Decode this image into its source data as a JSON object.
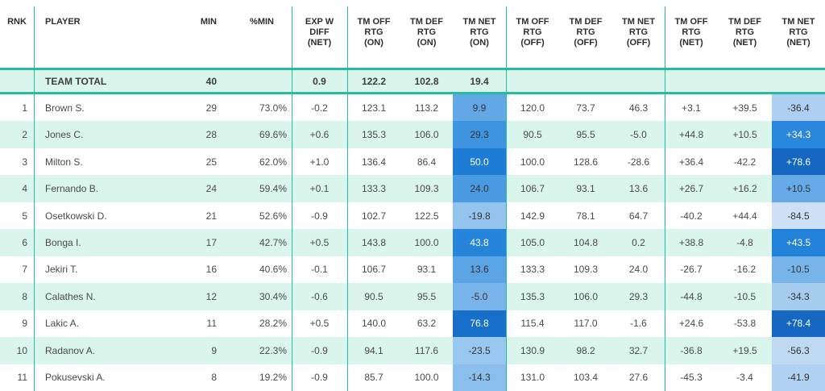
{
  "colors": {
    "teal_accent": "#26bca2",
    "stripe_bg": "#d9f5ec",
    "header_text": "#2e2e2e",
    "body_text": "#4a4a4a",
    "heat_dark_text": "#ffffff",
    "heat_light_text": "#333333"
  },
  "table": {
    "columns": [
      {
        "id": "rnk",
        "label": "RNK"
      },
      {
        "id": "player",
        "label": "PLAYER"
      },
      {
        "id": "min",
        "label": "MIN"
      },
      {
        "id": "pct_min",
        "label": "%MIN"
      },
      {
        "id": "exp_w_diff",
        "label": "EXP W\nDIFF\n(NET)"
      },
      {
        "id": "off_on",
        "label": "TM OFF\nRTG\n(ON)"
      },
      {
        "id": "def_on",
        "label": "TM DEF\nRTG\n(ON)"
      },
      {
        "id": "net_on",
        "label": "TM NET\nRTG\n(ON)"
      },
      {
        "id": "off_off",
        "label": "TM OFF\nRTG\n(OFF)"
      },
      {
        "id": "def_off",
        "label": "TM DEF\nRTG\n(OFF)"
      },
      {
        "id": "net_off",
        "label": "TM NET\nRTG\n(OFF)"
      },
      {
        "id": "off_net",
        "label": "TM OFF\nRTG\n(NET)"
      },
      {
        "id": "def_net",
        "label": "TM DEF\nRTG\n(NET)"
      },
      {
        "id": "net_net",
        "label": "TM NET\nRTG\n(NET)"
      }
    ],
    "total_row": {
      "rnk": "",
      "player": "TEAM TOTAL",
      "min": "40",
      "pct_min": "",
      "exp_w_diff": "0.9",
      "off_on": "122.2",
      "def_on": "102.8",
      "net_on": "19.4",
      "off_off": "",
      "def_off": "",
      "net_off": "",
      "off_net": "",
      "def_net": "",
      "net_net": ""
    },
    "rows": [
      {
        "rnk": "1",
        "player": "Brown S.",
        "min": "29",
        "pct_min": "73.0%",
        "exp_w_diff": "-0.2",
        "off_on": "123.1",
        "def_on": "113.2",
        "net_on": {
          "value": "9.9",
          "bg": "#62a8e6",
          "text": "#333333"
        },
        "off_off": "120.0",
        "def_off": "73.7",
        "net_off": "46.3",
        "off_net": "+3.1",
        "def_net": "+39.5",
        "net_net": {
          "value": "-36.4",
          "bg": "#aecff1",
          "text": "#333333"
        }
      },
      {
        "rnk": "2",
        "player": "Jones C.",
        "min": "28",
        "pct_min": "69.6%",
        "exp_w_diff": "+0.6",
        "off_on": "135.3",
        "def_on": "106.0",
        "net_on": {
          "value": "29.3",
          "bg": "#3f94e0",
          "text": "#333333"
        },
        "off_off": "90.5",
        "def_off": "95.5",
        "net_off": "-5.0",
        "off_net": "+44.8",
        "def_net": "+10.5",
        "net_net": {
          "value": "+34.3",
          "bg": "#2b87db",
          "text": "#ffffff"
        }
      },
      {
        "rnk": "3",
        "player": "Milton S.",
        "min": "25",
        "pct_min": "62.0%",
        "exp_w_diff": "+1.0",
        "off_on": "136.4",
        "def_on": "86.4",
        "net_on": {
          "value": "50.0",
          "bg": "#1e7cd4",
          "text": "#ffffff"
        },
        "off_off": "100.0",
        "def_off": "128.6",
        "net_off": "-28.6",
        "off_net": "+36.4",
        "def_net": "-42.2",
        "net_net": {
          "value": "+78.6",
          "bg": "#1567c1",
          "text": "#ffffff"
        }
      },
      {
        "rnk": "4",
        "player": "Fernando B.",
        "min": "24",
        "pct_min": "59.4%",
        "exp_w_diff": "+0.1",
        "off_on": "133.3",
        "def_on": "109.3",
        "net_on": {
          "value": "24.0",
          "bg": "#4a9ae2",
          "text": "#333333"
        },
        "off_off": "106.7",
        "def_off": "93.1",
        "net_off": "13.6",
        "off_net": "+26.7",
        "def_net": "+16.2",
        "net_net": {
          "value": "+10.5",
          "bg": "#66aae7",
          "text": "#333333"
        }
      },
      {
        "rnk": "5",
        "player": "Osetkowski D.",
        "min": "21",
        "pct_min": "52.6%",
        "exp_w_diff": "-0.9",
        "off_on": "102.7",
        "def_on": "122.5",
        "net_on": {
          "value": "-19.8",
          "bg": "#93c4ee",
          "text": "#333333"
        },
        "off_off": "142.9",
        "def_off": "78.1",
        "net_off": "64.7",
        "off_net": "-40.2",
        "def_net": "+44.4",
        "net_net": {
          "value": "-84.5",
          "bg": "#cde0f5",
          "text": "#333333"
        }
      },
      {
        "rnk": "6",
        "player": "Bonga I.",
        "min": "17",
        "pct_min": "42.7%",
        "exp_w_diff": "+0.5",
        "off_on": "143.8",
        "def_on": "100.0",
        "net_on": {
          "value": "43.8",
          "bg": "#2685da",
          "text": "#ffffff"
        },
        "off_off": "105.0",
        "def_off": "104.8",
        "net_off": "0.2",
        "off_net": "+38.8",
        "def_net": "-4.8",
        "net_net": {
          "value": "+43.5",
          "bg": "#2281d9",
          "text": "#ffffff"
        }
      },
      {
        "rnk": "7",
        "player": "Jekiri T.",
        "min": "16",
        "pct_min": "40.6%",
        "exp_w_diff": "-0.1",
        "off_on": "106.7",
        "def_on": "93.1",
        "net_on": {
          "value": "13.6",
          "bg": "#5ba4e5",
          "text": "#333333"
        },
        "off_off": "133.3",
        "def_off": "109.3",
        "net_off": "24.0",
        "off_net": "-26.7",
        "def_net": "-16.2",
        "net_net": {
          "value": "-10.5",
          "bg": "#77b4ea",
          "text": "#333333"
        }
      },
      {
        "rnk": "8",
        "player": "Calathes N.",
        "min": "12",
        "pct_min": "30.4%",
        "exp_w_diff": "-0.6",
        "off_on": "90.5",
        "def_on": "95.5",
        "net_on": {
          "value": "-5.0",
          "bg": "#79b5ea",
          "text": "#333333"
        },
        "off_off": "135.3",
        "def_off": "106.0",
        "net_off": "29.3",
        "off_net": "-44.8",
        "def_net": "-10.5",
        "net_net": {
          "value": "-34.3",
          "bg": "#a6ccf0",
          "text": "#333333"
        }
      },
      {
        "rnk": "9",
        "player": "Lakic A.",
        "min": "11",
        "pct_min": "28.2%",
        "exp_w_diff": "+0.5",
        "off_on": "140.0",
        "def_on": "63.2",
        "net_on": {
          "value": "76.8",
          "bg": "#176fc9",
          "text": "#ffffff"
        },
        "off_off": "115.4",
        "def_off": "117.0",
        "net_off": "-1.6",
        "off_net": "+24.6",
        "def_net": "-53.8",
        "net_net": {
          "value": "+78.4",
          "bg": "#1567c1",
          "text": "#ffffff"
        }
      },
      {
        "rnk": "10",
        "player": "Radanov A.",
        "min": "9",
        "pct_min": "22.3%",
        "exp_w_diff": "-0.9",
        "off_on": "94.1",
        "def_on": "117.6",
        "net_on": {
          "value": "-23.5",
          "bg": "#98c7ef",
          "text": "#333333"
        },
        "off_off": "130.9",
        "def_off": "98.2",
        "net_off": "32.7",
        "off_net": "-36.8",
        "def_net": "+19.5",
        "net_net": {
          "value": "-56.3",
          "bg": "#c0d9f3",
          "text": "#333333"
        }
      },
      {
        "rnk": "11",
        "player": "Pokusevski A.",
        "min": "8",
        "pct_min": "19.2%",
        "exp_w_diff": "-0.9",
        "off_on": "85.7",
        "def_on": "100.0",
        "net_on": {
          "value": "-14.3",
          "bg": "#8abfed",
          "text": "#333333"
        },
        "off_off": "131.0",
        "def_off": "103.4",
        "net_off": "27.6",
        "off_net": "-45.3",
        "def_net": "-3.4",
        "net_net": {
          "value": "-41.9",
          "bg": "#b0d1f1",
          "text": "#333333"
        }
      }
    ],
    "divider_positions": [
      42,
      362,
      431,
      628,
      825
    ]
  }
}
